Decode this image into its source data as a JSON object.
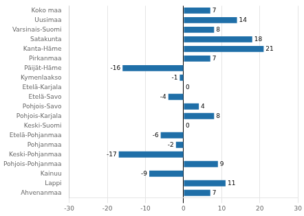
{
  "chart_data": {
    "type": "bar",
    "orientation": "horizontal",
    "categories": [
      "Koko maa",
      "Uusimaa",
      "Varsinais-Suomi",
      "Satakunta",
      "Kanta-Häme",
      "Pirkanmaa",
      "Päijät-Häme",
      "Kymenlaakso",
      "Etelä-Karjala",
      "Etelä-Savo",
      "Pohjois-Savo",
      "Pohjois-Karjala",
      "Keski-Suomi",
      "Etelä-Pohjanmaa",
      "Pohjanmaa",
      "Keski-Pohjanmaa",
      "Pohjois-Pohjanmaa",
      "Kainuu",
      "Lappi",
      "Ahvenanmaa"
    ],
    "values": [
      7,
      14,
      8,
      18,
      21,
      7,
      -16,
      -1,
      0,
      -4,
      4,
      8,
      0,
      -6,
      -2,
      -17,
      9,
      -9,
      11,
      7
    ],
    "color": "#1f6fa8",
    "xlim": [
      -30,
      30
    ],
    "xticks": [
      -30,
      -20,
      -10,
      0,
      10,
      20,
      30
    ],
    "grid": true,
    "data_labels": true
  }
}
